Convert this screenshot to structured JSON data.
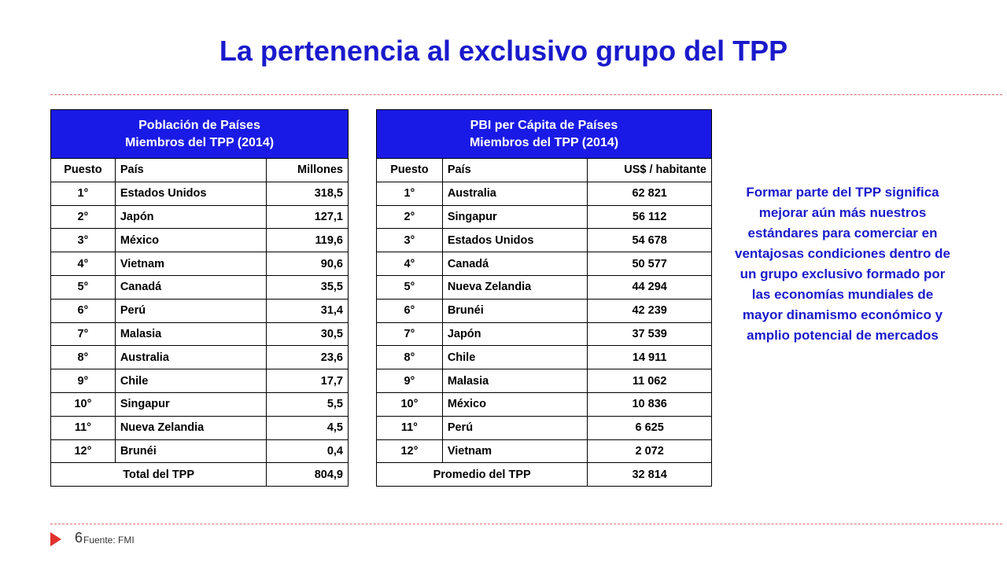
{
  "title": "La pertenencia al exclusivo grupo del TPP",
  "population_table": {
    "caption_line1": "Población de Países",
    "caption_line2": "Miembros del TPP (2014)",
    "columns": [
      "Puesto",
      "País",
      "Millones"
    ],
    "rows": [
      [
        "1°",
        "Estados Unidos",
        "318,5"
      ],
      [
        "2°",
        "Japón",
        "127,1"
      ],
      [
        "3°",
        "México",
        "119,6"
      ],
      [
        "4°",
        "Vietnam",
        "90,6"
      ],
      [
        "5°",
        "Canadá",
        "35,5"
      ],
      [
        "6°",
        "Perú",
        "31,4"
      ],
      [
        "7°",
        "Malasia",
        "30,5"
      ],
      [
        "8°",
        "Australia",
        "23,6"
      ],
      [
        "9°",
        "Chile",
        "17,7"
      ],
      [
        "10°",
        "Singapur",
        "5,5"
      ],
      [
        "11°",
        "Nueva Zelandia",
        "4,5"
      ],
      [
        "12°",
        "Brunéi",
        "0,4"
      ]
    ],
    "total_label": "Total del TPP",
    "total_value": "804,9"
  },
  "gdp_table": {
    "caption_line1": "PBI per Cápita de Países",
    "caption_line2": "Miembros del TPP (2014)",
    "columns": [
      "Puesto",
      "País",
      "US$ / habitante"
    ],
    "rows": [
      [
        "1°",
        "Australia",
        "62 821"
      ],
      [
        "2°",
        "Singapur",
        "56 112"
      ],
      [
        "3°",
        "Estados Unidos",
        "54 678"
      ],
      [
        "4°",
        "Canadá",
        "50 577"
      ],
      [
        "5°",
        "Nueva Zelandia",
        "44 294"
      ],
      [
        "6°",
        "Brunéi",
        "42 239"
      ],
      [
        "7°",
        "Japón",
        "37 539"
      ],
      [
        "8°",
        "Chile",
        "14 911"
      ],
      [
        "9°",
        "Malasia",
        "11 062"
      ],
      [
        "10°",
        "México",
        "10 836"
      ],
      [
        "11°",
        "Perú",
        "6 625"
      ],
      [
        "12°",
        "Vietnam",
        "2 072"
      ]
    ],
    "total_label": "Promedio del TPP",
    "total_value": "32 814"
  },
  "side_note": "Formar parte del TPP significa mejorar aún más nuestros estándares para comerciar en ventajosas condiciones dentro de un grupo exclusivo formado por las economías mundiales de mayor dinamismo económico y amplio potencial de mercados",
  "footer": {
    "page_number": "6",
    "source": "Fuente: FMI"
  },
  "colors": {
    "title": "#1a1acc",
    "table_header": "#1a1ae6",
    "accent": "#e0312e"
  },
  "icons": {
    "footer_marker": "triangle-right-icon"
  }
}
